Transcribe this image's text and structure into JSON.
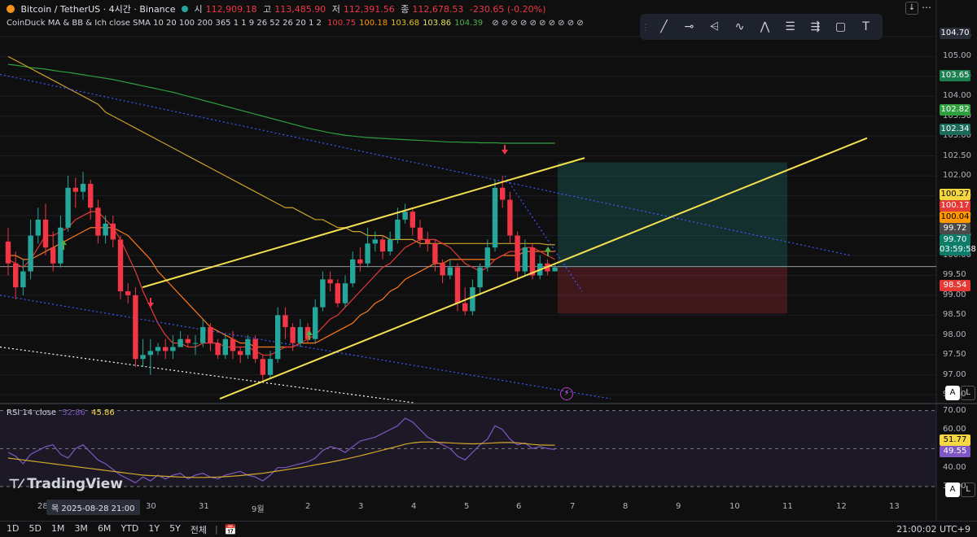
{
  "header": {
    "symbol": "Bitcoin / TetherUS · 4시간 · Binance",
    "open_label": "시",
    "open": "112,909.18",
    "high_label": "고",
    "high": "113,485.90",
    "low_label": "저",
    "low": "112,391.56",
    "close_label": "종",
    "close": "112,678.53",
    "change": "-230.65 (-0.20%)",
    "indicator_label": "CoinDuck MA & BB & Ich close SMA 10 20 100 200 365 1 1 9 26 52 26 20 1 2",
    "indicator_values": [
      {
        "value": "100.75",
        "color": "#f23645"
      },
      {
        "value": "100.18",
        "color": "#ff9800"
      },
      {
        "value": "103.68",
        "color": "#e0c020"
      },
      {
        "value": "103.86",
        "color": "#e0e060"
      },
      {
        "value": "104.39",
        "color": "#4caf50"
      }
    ],
    "indicator_trailing": "⊘ ⊘ ⊘ ⊘ ⊘ ⊘ ⊘ ⊘ ⊘ ⊘"
  },
  "toolbar": {
    "icons": [
      "trend-line-icon",
      "horizontal-line-icon",
      "long-position-icon",
      "pattern-icon",
      "xabcd-pattern-icon",
      "fib-retracement-icon",
      "fib-channel-icon",
      "rectangle-icon",
      "text-icon"
    ],
    "glyphs": [
      "╱",
      "⊸",
      "⩤",
      "∿",
      "⋀",
      "☰",
      "⇶",
      "▢",
      "T"
    ]
  },
  "price_axis": {
    "ticks": [
      "105.50",
      "105.00",
      "104.50",
      "104.00",
      "103.50",
      "103.00",
      "102.50",
      "102.00",
      "101.50",
      "101.00",
      "100.50",
      "100.00",
      "99.50",
      "99.00",
      "98.50",
      "98.00",
      "97.50",
      "97.00",
      "96.50"
    ],
    "tags": [
      {
        "text": "104.70",
        "bg": "#2a2e39",
        "fg": "#ffffff"
      },
      {
        "text": "103.65",
        "bg": "#1b7f4f",
        "fg": "#ffffff"
      },
      {
        "text": "102.82",
        "bg": "#2e9e3e",
        "fg": "#ffffff"
      },
      {
        "text": "102.34",
        "bg": "#1a6b5a",
        "fg": "#ffffff"
      },
      {
        "text": "100.27",
        "bg": "#f5d742",
        "fg": "#000000"
      },
      {
        "text": "100.17",
        "bg": "#e53935",
        "fg": "#ffffff"
      },
      {
        "text": "100.04",
        "bg": "#ff9800",
        "fg": "#000000"
      },
      {
        "text": "99.72",
        "bg": "#4a4a4a",
        "fg": "#ffffff"
      },
      {
        "text": "99.70",
        "bg": "#0d7d6a",
        "fg": "#ffffff"
      },
      {
        "text": "03:59:58",
        "bg": "#0d7d6a",
        "fg": "#ffffff"
      },
      {
        "text": "98.54",
        "bg": "#e53935",
        "fg": "#ffffff"
      }
    ]
  },
  "rsi": {
    "label": "RSI 14 close",
    "value1": "52.86",
    "value2": "45.86",
    "ticks": [
      "70.00",
      "60.00",
      "50.00",
      "40.00",
      "30.00"
    ],
    "tags": [
      {
        "text": "51.77",
        "bg": "#f5d742",
        "fg": "#000000"
      },
      {
        "text": "49.55",
        "bg": "#7e57c2",
        "fg": "#ffffff"
      }
    ]
  },
  "time_axis": {
    "labels": [
      "28",
      "29",
      "30",
      "31",
      "9월",
      "2",
      "3",
      "4",
      "5",
      "6",
      "7",
      "8",
      "9",
      "10",
      "11",
      "12",
      "13"
    ],
    "cursor_label": "목 2025-08-28  21:00"
  },
  "bottom_bar": {
    "timeframes": [
      "1D",
      "5D",
      "1M",
      "3M",
      "6M",
      "YTD",
      "1Y",
      "5Y",
      "전체"
    ],
    "clock": "21:00:02 UTC+9"
  },
  "watermark": "TradingView",
  "scale_buttons": {
    "auto": "A",
    "log": "L"
  },
  "chart_data": {
    "type": "candlestick",
    "price_ylim": [
      96.3,
      105.6
    ],
    "rsi_ylim": [
      27,
      72
    ],
    "candles": [
      [
        100.35,
        99.8,
        100.7,
        99.5
      ],
      [
        99.8,
        99.2,
        100.1,
        98.9
      ],
      [
        99.2,
        99.6,
        99.9,
        99.0
      ],
      [
        99.6,
        100.5,
        100.9,
        99.4
      ],
      [
        100.5,
        100.9,
        101.2,
        100.3
      ],
      [
        100.9,
        100.2,
        101.3,
        100.0
      ],
      [
        100.2,
        99.8,
        100.6,
        99.6
      ],
      [
        99.8,
        100.7,
        101.0,
        99.7
      ],
      [
        100.7,
        101.7,
        102.0,
        100.6
      ],
      [
        101.7,
        101.6,
        101.95,
        101.2
      ],
      [
        101.6,
        101.8,
        102.1,
        101.4
      ],
      [
        101.8,
        101.2,
        101.9,
        100.9
      ],
      [
        101.2,
        100.5,
        101.4,
        100.3
      ],
      [
        100.5,
        100.8,
        101.0,
        100.3
      ],
      [
        100.8,
        100.4,
        101.0,
        100.2
      ],
      [
        100.4,
        99.1,
        100.5,
        98.9
      ],
      [
        99.1,
        99.0,
        99.3,
        98.8
      ],
      [
        99.0,
        97.4,
        99.2,
        97.2
      ],
      [
        97.4,
        97.5,
        97.9,
        97.2
      ],
      [
        97.5,
        97.6,
        97.9,
        97.0
      ],
      [
        97.6,
        97.7,
        97.8,
        97.5
      ],
      [
        97.7,
        97.6,
        97.9,
        97.4
      ],
      [
        97.6,
        97.7,
        98.0,
        97.4
      ],
      [
        97.7,
        97.9,
        98.1,
        97.7
      ],
      [
        97.9,
        97.8,
        98.0,
        97.7
      ],
      [
        97.8,
        97.8,
        98.0,
        97.5
      ],
      [
        97.8,
        98.2,
        98.4,
        97.7
      ],
      [
        98.2,
        97.8,
        98.3,
        97.6
      ],
      [
        97.8,
        97.5,
        97.9,
        97.4
      ],
      [
        97.5,
        97.9,
        98.0,
        97.4
      ],
      [
        97.9,
        97.6,
        98.1,
        97.4
      ],
      [
        97.6,
        97.5,
        97.7,
        97.3
      ],
      [
        97.5,
        97.9,
        98.0,
        97.4
      ],
      [
        97.9,
        97.4,
        98.0,
        97.3
      ],
      [
        97.4,
        97.0,
        97.5,
        96.8
      ],
      [
        97.0,
        97.4,
        97.6,
        96.9
      ],
      [
        97.4,
        98.5,
        98.7,
        97.3
      ],
      [
        98.5,
        98.2,
        98.7,
        97.9
      ],
      [
        98.2,
        97.8,
        98.3,
        97.6
      ],
      [
        97.8,
        98.2,
        98.4,
        97.7
      ],
      [
        98.2,
        97.9,
        98.3,
        97.8
      ],
      [
        97.9,
        98.7,
        98.9,
        97.8
      ],
      [
        98.7,
        99.4,
        99.6,
        98.6
      ],
      [
        99.4,
        99.3,
        99.6,
        99.1
      ],
      [
        99.3,
        98.8,
        99.4,
        98.7
      ],
      [
        98.8,
        99.3,
        99.5,
        98.7
      ],
      [
        99.3,
        99.9,
        100.1,
        99.2
      ],
      [
        99.9,
        99.8,
        100.2,
        99.6
      ],
      [
        99.8,
        100.3,
        100.7,
        99.7
      ],
      [
        100.3,
        100.4,
        100.6,
        100.1
      ],
      [
        100.4,
        100.1,
        100.5,
        99.9
      ],
      [
        100.1,
        100.4,
        100.6,
        100.0
      ],
      [
        100.4,
        100.9,
        101.2,
        100.3
      ],
      [
        100.9,
        101.1,
        101.3,
        100.8
      ],
      [
        101.1,
        100.7,
        101.2,
        100.5
      ],
      [
        100.7,
        100.4,
        100.9,
        100.2
      ],
      [
        100.4,
        100.3,
        100.6,
        100.1
      ],
      [
        100.3,
        99.8,
        100.4,
        99.6
      ],
      [
        99.8,
        99.5,
        99.9,
        99.3
      ],
      [
        99.5,
        99.7,
        99.9,
        99.4
      ],
      [
        99.7,
        98.8,
        99.8,
        98.6
      ],
      [
        98.8,
        98.6,
        99.2,
        98.5
      ],
      [
        98.6,
        99.2,
        99.4,
        98.5
      ],
      [
        99.2,
        99.7,
        99.8,
        99.0
      ],
      [
        99.7,
        100.2,
        100.4,
        99.6
      ],
      [
        100.2,
        101.7,
        101.9,
        100.1
      ],
      [
        101.7,
        101.4,
        102.0,
        101.2
      ],
      [
        101.4,
        100.5,
        101.6,
        100.3
      ],
      [
        100.5,
        99.6,
        100.6,
        99.4
      ],
      [
        99.6,
        100.2,
        100.4,
        99.5
      ],
      [
        100.2,
        99.5,
        100.3,
        99.4
      ],
      [
        99.5,
        99.8,
        100.0,
        99.4
      ],
      [
        99.8,
        99.6,
        99.9,
        99.5
      ],
      [
        99.6,
        99.7,
        99.8,
        99.6
      ]
    ],
    "ma_short": [
      99.9,
      99.8,
      99.7,
      99.9,
      100.2,
      100.5,
      100.5,
      100.6,
      100.7,
      100.9,
      101.0,
      101.1,
      101.1,
      100.9,
      100.7,
      100.4,
      100.0,
      99.6,
      99.1,
      98.7,
      98.3,
      98.0,
      97.8,
      97.8,
      97.7,
      97.7,
      97.8,
      97.8,
      97.8,
      97.7,
      97.7,
      97.7,
      97.7,
      97.6,
      97.5,
      97.5,
      97.6,
      97.7,
      97.7,
      97.8,
      97.9,
      98.0,
      98.2,
      98.4,
      98.5,
      98.7,
      98.9,
      99.1,
      99.3,
      99.5,
      99.7,
      99.8,
      100.0,
      100.2,
      100.3,
      100.4,
      100.4,
      100.4,
      100.3,
      100.2,
      100.0,
      99.8,
      99.7,
      99.6,
      99.7,
      99.9,
      100.0,
      100.1,
      100.1,
      100.2,
      100.2,
      100.1,
      100.0,
      99.9
    ],
    "ma_mid": [
      100.0,
      100.0,
      99.9,
      99.9,
      100.0,
      100.1,
      100.2,
      100.3,
      100.4,
      100.5,
      100.6,
      100.7,
      100.7,
      100.7,
      100.7,
      100.6,
      100.5,
      100.3,
      100.1,
      99.9,
      99.6,
      99.4,
      99.2,
      99.0,
      98.8,
      98.6,
      98.4,
      98.2,
      98.1,
      98.0,
      97.9,
      97.8,
      97.8,
      97.7,
      97.7,
      97.7,
      97.7,
      97.7,
      97.7,
      97.8,
      97.8,
      97.8,
      97.9,
      98.0,
      98.1,
      98.2,
      98.3,
      98.5,
      98.6,
      98.8,
      98.9,
      99.1,
      99.2,
      99.4,
      99.5,
      99.6,
      99.7,
      99.8,
      99.8,
      99.9,
      99.9,
      99.9,
      99.9,
      99.9,
      99.9,
      99.9,
      100.0,
      100.0,
      100.0,
      100.1,
      100.1,
      100.1,
      100.1,
      100.1
    ],
    "ma_100": [
      105.0,
      104.9,
      104.8,
      104.7,
      104.6,
      104.5,
      104.4,
      104.3,
      104.2,
      104.1,
      104.0,
      103.9,
      103.8,
      103.6,
      103.5,
      103.4,
      103.3,
      103.2,
      103.1,
      103.0,
      102.9,
      102.8,
      102.7,
      102.6,
      102.5,
      102.4,
      102.3,
      102.2,
      102.1,
      102.0,
      101.9,
      101.8,
      101.7,
      101.6,
      101.5,
      101.4,
      101.3,
      101.2,
      101.2,
      101.1,
      101.0,
      100.9,
      100.9,
      100.8,
      100.7,
      100.7,
      100.6,
      100.6,
      100.5,
      100.5,
      100.5,
      100.4,
      100.4,
      100.4,
      100.4,
      100.3,
      100.3,
      100.3,
      100.3,
      100.3,
      100.3,
      100.3,
      100.3,
      100.3,
      100.3,
      100.3,
      100.3,
      100.3,
      100.3,
      100.3,
      100.3,
      100.3,
      100.27,
      100.27
    ],
    "ma_200": [
      104.8,
      104.78,
      104.75,
      104.72,
      104.7,
      104.68,
      104.65,
      104.62,
      104.6,
      104.57,
      104.54,
      104.51,
      104.48,
      104.45,
      104.42,
      104.38,
      104.34,
      104.3,
      104.26,
      104.22,
      104.18,
      104.14,
      104.1,
      104.05,
      104.0,
      103.95,
      103.9,
      103.85,
      103.8,
      103.75,
      103.7,
      103.65,
      103.6,
      103.55,
      103.5,
      103.45,
      103.4,
      103.35,
      103.3,
      103.25,
      103.2,
      103.16,
      103.12,
      103.08,
      103.05,
      103.02,
      103.0,
      102.98,
      102.96,
      102.95,
      102.94,
      102.93,
      102.92,
      102.91,
      102.9,
      102.89,
      102.88,
      102.87,
      102.86,
      102.85,
      102.85,
      102.84,
      102.84,
      102.83,
      102.83,
      102.83,
      102.82,
      102.82,
      102.82,
      102.82,
      102.82,
      102.82,
      102.82,
      102.82
    ],
    "rsi_values": [
      48,
      46,
      42,
      47,
      49,
      51,
      52,
      47,
      45,
      50,
      52,
      48,
      44,
      42,
      39,
      36,
      34,
      32,
      35,
      33,
      36,
      34,
      36,
      37,
      34,
      36,
      37,
      35,
      34,
      36,
      37,
      38,
      36,
      35,
      33,
      36,
      40,
      40,
      41,
      42,
      43,
      45,
      49,
      51,
      50,
      48,
      51,
      54,
      55,
      56,
      58,
      60,
      62,
      66,
      64,
      60,
      56,
      54,
      52,
      50,
      46,
      44,
      48,
      52,
      55,
      62,
      60,
      55,
      52,
      53,
      50,
      51,
      50,
      49.55
    ],
    "rsi_ma": [
      45,
      44.5,
      44,
      43.5,
      43,
      42.5,
      42,
      41.5,
      41,
      40.5,
      40,
      39.5,
      39,
      38.5,
      38,
      37.5,
      37,
      36.5,
      36,
      35.8,
      35.6,
      35.4,
      35.2,
      35,
      34.9,
      34.8,
      34.8,
      34.9,
      35,
      35.2,
      35.5,
      35.8,
      36.2,
      36.6,
      37,
      37.6,
      38.2,
      38.8,
      39.4,
      40,
      40.7,
      41.4,
      42.1,
      42.8,
      43.6,
      44.4,
      45.3,
      46.2,
      47.2,
      48.2,
      49.2,
      50.2,
      51.2,
      52.3,
      53,
      53.4,
      53.5,
      53.4,
      53.2,
      53,
      52.8,
      52.6,
      52.5,
      52.6,
      52.8,
      53,
      53.2,
      53.2,
      53,
      52.6,
      52.2,
      51.9,
      51.8,
      51.77
    ]
  }
}
